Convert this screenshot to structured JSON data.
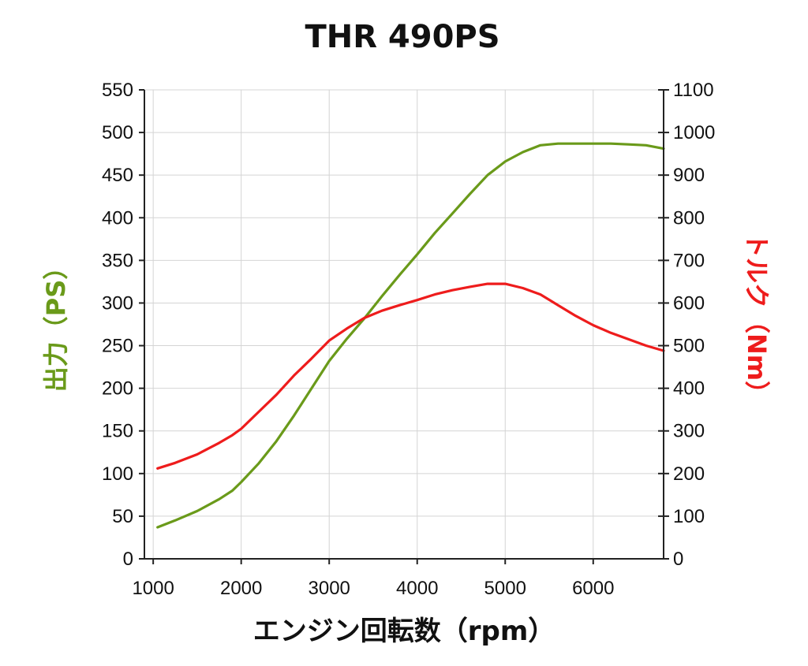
{
  "chart_data": {
    "type": "line",
    "title": "THR 490PS",
    "xlabel": "エンジン回転数（rpm）",
    "ylabel_left": "出力（PS）",
    "ylabel_right": "トルク（Nm）",
    "xlim": [
      900,
      6800
    ],
    "ylim_left": [
      0,
      550
    ],
    "ylim_right": [
      0,
      1100
    ],
    "x_ticks": [
      1000,
      2000,
      3000,
      4000,
      5000,
      6000
    ],
    "y_ticks_left": [
      0,
      50,
      100,
      150,
      200,
      250,
      300,
      350,
      400,
      450,
      500,
      550
    ],
    "y_ticks_right": [
      0,
      100,
      200,
      300,
      400,
      500,
      600,
      700,
      800,
      900,
      1000,
      1100
    ],
    "grid": true,
    "series": [
      {
        "name": "出力（PS）",
        "axis": "left",
        "color": "#6a9a1a",
        "x": [
          1050,
          1250,
          1500,
          1750,
          1900,
          2000,
          2200,
          2400,
          2600,
          2800,
          3000,
          3200,
          3400,
          3600,
          3800,
          4000,
          4200,
          4400,
          4600,
          4800,
          5000,
          5200,
          5400,
          5600,
          5800,
          6000,
          6200,
          6400,
          6600,
          6800
        ],
        "values": [
          37,
          45,
          56,
          70,
          80,
          90,
          112,
          138,
          168,
          200,
          232,
          258,
          282,
          308,
          333,
          357,
          382,
          405,
          428,
          450,
          466,
          477,
          485,
          487,
          487,
          487,
          487,
          486,
          485,
          481
        ]
      },
      {
        "name": "トルク（Nm）",
        "axis": "right",
        "color": "#ee1c1c",
        "x": [
          1050,
          1250,
          1500,
          1750,
          1900,
          2000,
          2200,
          2400,
          2600,
          2800,
          3000,
          3200,
          3400,
          3600,
          3800,
          4000,
          4200,
          4400,
          4600,
          4800,
          5000,
          5200,
          5400,
          5600,
          5800,
          6000,
          6200,
          6400,
          6600,
          6800
        ],
        "values": [
          212,
          225,
          245,
          272,
          290,
          305,
          345,
          385,
          430,
          470,
          512,
          540,
          565,
          582,
          595,
          607,
          620,
          630,
          638,
          645,
          645,
          635,
          620,
          595,
          570,
          548,
          530,
          515,
          500,
          488
        ]
      }
    ]
  }
}
